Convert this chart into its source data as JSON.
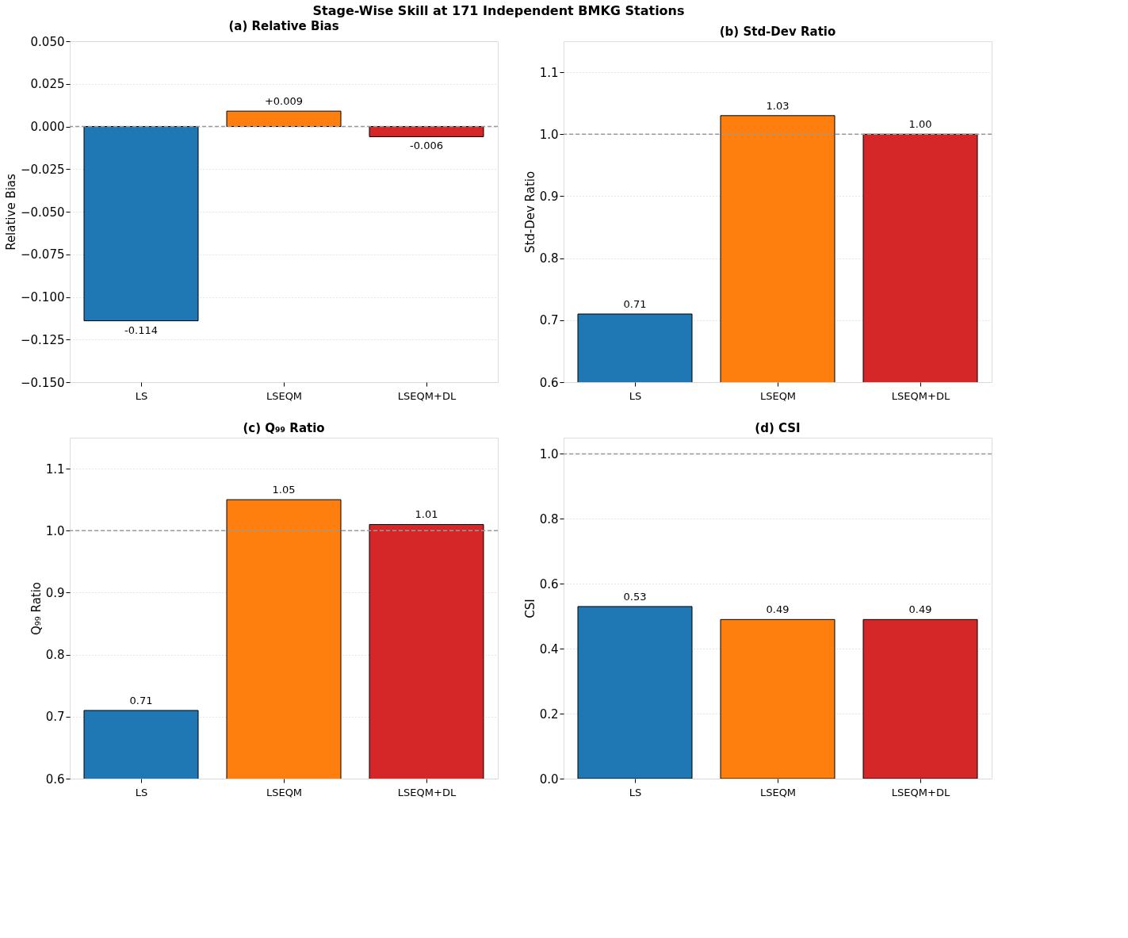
{
  "chart_data": [
    {
      "type": "bar",
      "title": "(a) Relative Bias",
      "ylabel": "Relative Bias",
      "categories": [
        "LS",
        "LSEQM",
        "LSEQM+DL"
      ],
      "values": [
        -0.114,
        0.009,
        -0.006
      ],
      "colors": [
        "#1f77b4",
        "#ff7f0e",
        "#d62728"
      ],
      "value_labels": [
        "-0.114",
        "+0.009",
        "-0.006"
      ],
      "ylim": [
        -0.15,
        0.05
      ],
      "yticks": [
        {
          "value": -0.15,
          "label": "−0.150"
        },
        {
          "value": -0.125,
          "label": "−0.125"
        },
        {
          "value": -0.1,
          "label": "−0.100"
        },
        {
          "value": -0.075,
          "label": "−0.075"
        },
        {
          "value": -0.05,
          "label": "−0.050"
        },
        {
          "value": -0.025,
          "label": "−0.025"
        },
        {
          "value": 0,
          "label": "0.000"
        },
        {
          "value": 0.025,
          "label": "0.025"
        },
        {
          "value": 0.05,
          "label": "0.050"
        }
      ],
      "grid": "y",
      "ref_lines": [
        {
          "axis": "y",
          "value": 0,
          "color": "#999999",
          "line_style": "dashed"
        }
      ],
      "annotations": [
        "Stage-Wise Skill at 171 Independent BMKG Stations"
      ]
    },
    {
      "type": "bar",
      "title": "(b) Std-Dev Ratio",
      "ylabel": "Std-Dev Ratio",
      "categories": [
        "LS",
        "LSEQM",
        "LSEQM+DL"
      ],
      "values": [
        0.71,
        1.03,
        1.0
      ],
      "colors": [
        "#1f77b4",
        "#ff7f0e",
        "#d62728"
      ],
      "value_labels": [
        "0.71",
        "1.03",
        "1.00"
      ],
      "ylim": [
        0.6,
        1.15
      ],
      "yticks": [
        0.6,
        0.7,
        0.8,
        0.9,
        {
          "value": 1,
          "label": "1.0"
        },
        1.1
      ],
      "grid": "y",
      "ref_lines": [
        {
          "axis": "y",
          "value": 1,
          "color": "#999999",
          "line_style": "dashed"
        }
      ]
    },
    {
      "type": "bar",
      "title": "(c) Q₉₉ Ratio",
      "ylabel": "Q₉₉ Ratio",
      "categories": [
        "LS",
        "LSEQM",
        "LSEQM+DL"
      ],
      "values": [
        0.71,
        1.05,
        1.01
      ],
      "colors": [
        "#1f77b4",
        "#ff7f0e",
        "#d62728"
      ],
      "value_labels": [
        "0.71",
        "1.05",
        "1.01"
      ],
      "ylim": [
        0.6,
        1.15
      ],
      "yticks": [
        0.6,
        0.7,
        0.8,
        0.9,
        {
          "value": 1,
          "label": "1.0"
        },
        1.1
      ],
      "grid": "y",
      "ref_lines": [
        {
          "axis": "y",
          "value": 1,
          "color": "#999999",
          "line_style": "dashed"
        }
      ]
    },
    {
      "type": "bar",
      "title": "(d) CSI",
      "ylabel": "CSI",
      "categories": [
        "LS",
        "LSEQM",
        "LSEQM+DL"
      ],
      "values": [
        0.53,
        0.49,
        0.49
      ],
      "colors": [
        "#1f77b4",
        "#ff7f0e",
        "#d62728"
      ],
      "value_labels": [
        "0.53",
        "0.49",
        "0.49"
      ],
      "ylim": [
        0,
        1.05
      ],
      "yticks": [
        {
          "value": 0,
          "label": "0.0"
        },
        0.2,
        0.4,
        0.6,
        0.8,
        {
          "value": 1,
          "label": "1.0"
        }
      ],
      "grid": "y",
      "ref_lines": [
        {
          "axis": "y",
          "value": 1,
          "color": "#999999",
          "line_style": "dashed"
        }
      ]
    }
  ]
}
